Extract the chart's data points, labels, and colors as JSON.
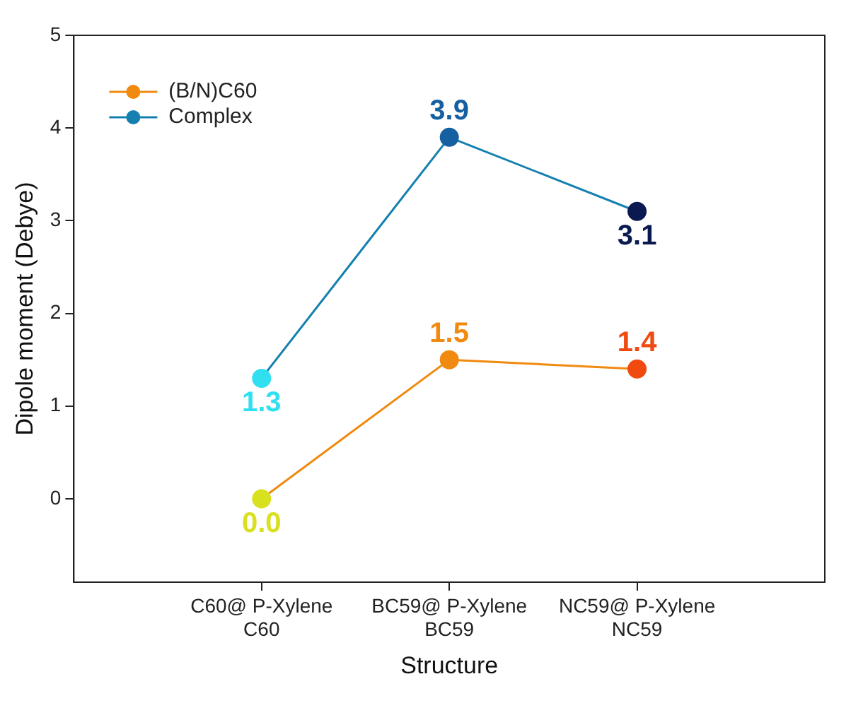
{
  "chart_data": {
    "type": "line",
    "xlabel": "Structure",
    "ylabel": "Dipole moment (Debye)",
    "categories": [
      "C60@ P-Xylene\nC60",
      "BC59@ P-Xylene\nBC59",
      "NC59@ P-Xylene\nNC59"
    ],
    "series": [
      {
        "name": "(B/N)C60",
        "color": "#f08a10",
        "colors": [
          "#d8e020",
          "#f08a10",
          "#f04a10"
        ],
        "values": [
          0.0,
          1.5,
          1.4
        ],
        "value_labels": [
          "0.0",
          "1.5",
          "1.4"
        ]
      },
      {
        "name": "Complex",
        "color": "#1580b0",
        "colors": [
          "#30e0f0",
          "#1560a0",
          "#0a1a50"
        ],
        "values": [
          1.3,
          3.9,
          3.1
        ],
        "value_labels": [
          "1.3",
          "3.9",
          "3.1"
        ]
      }
    ],
    "ylim": [
      -0.9,
      5
    ],
    "yticks": [
      0,
      1,
      2,
      3,
      4,
      5
    ],
    "grid": false,
    "legend": "top left",
    "marker": "circle"
  }
}
